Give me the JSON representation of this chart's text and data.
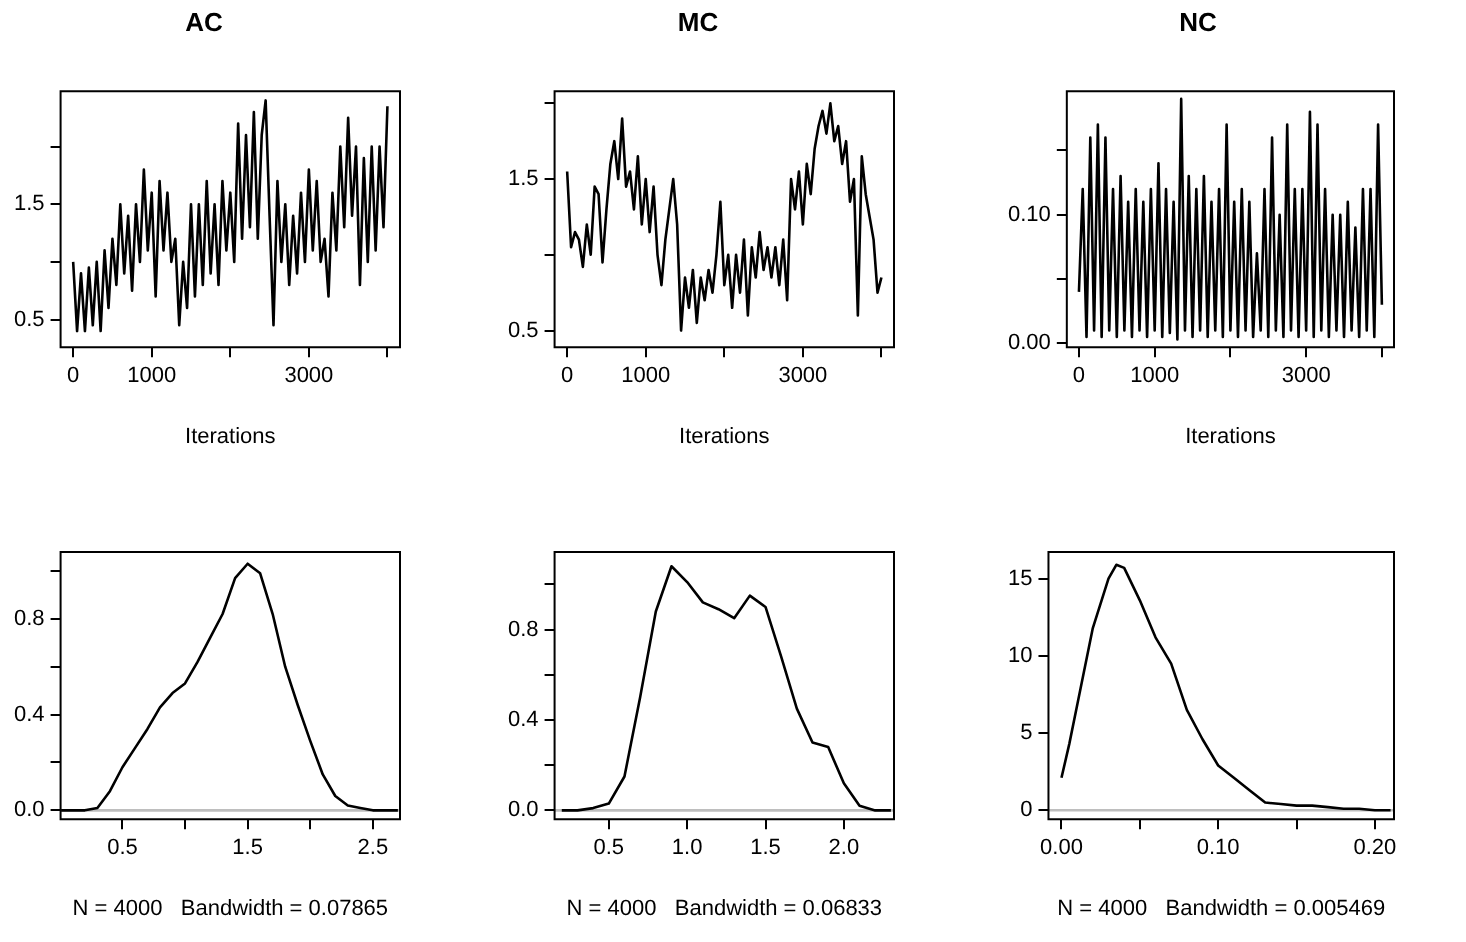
{
  "chart_data": [
    {
      "type": "line",
      "title": "AC",
      "xlabel": "Iterations",
      "x": [
        0,
        50,
        100,
        150,
        200,
        250,
        300,
        350,
        400,
        450,
        500,
        550,
        600,
        650,
        700,
        750,
        800,
        850,
        900,
        950,
        1000,
        1050,
        1100,
        1150,
        1200,
        1250,
        1300,
        1350,
        1400,
        1450,
        1500,
        1550,
        1600,
        1650,
        1700,
        1750,
        1800,
        1850,
        1900,
        1950,
        2000,
        2050,
        2100,
        2150,
        2200,
        2250,
        2300,
        2350,
        2400,
        2450,
        2500,
        2550,
        2600,
        2650,
        2700,
        2750,
        2800,
        2850,
        2900,
        2950,
        3000,
        3050,
        3100,
        3150,
        3200,
        3250,
        3300,
        3350,
        3400,
        3450,
        3500,
        3550,
        3600,
        3650,
        3700,
        3750,
        3800,
        3850,
        3900,
        3950,
        4000
      ],
      "series": [
        {
          "color": "#000000",
          "values": [
            1.0,
            0.4,
            0.9,
            0.4,
            0.95,
            0.45,
            1.0,
            0.4,
            1.1,
            0.6,
            1.2,
            0.8,
            1.5,
            0.9,
            1.4,
            0.75,
            1.5,
            1.0,
            1.8,
            1.1,
            1.6,
            0.7,
            1.7,
            1.1,
            1.6,
            1.0,
            1.2,
            0.45,
            1.0,
            0.6,
            1.5,
            0.7,
            1.5,
            0.8,
            1.7,
            0.9,
            1.5,
            0.8,
            1.7,
            1.1,
            1.6,
            1.0,
            2.2,
            1.2,
            2.1,
            1.3,
            2.3,
            1.2,
            2.1,
            2.4,
            1.4,
            0.45,
            1.7,
            1.0,
            1.5,
            0.8,
            1.4,
            0.9,
            1.6,
            1.0,
            1.8,
            1.1,
            1.7,
            1.0,
            1.2,
            0.7,
            1.6,
            1.1,
            2.0,
            1.3,
            2.25,
            1.4,
            2.0,
            0.8,
            1.9,
            1.0,
            2.0,
            1.1,
            2.0,
            1.3,
            2.35
          ]
        }
      ],
      "xlim": [
        -160,
        4160
      ],
      "xticks": [
        0,
        1000,
        {
          "value": 2000,
          "label": null
        },
        3000,
        {
          "value": 4000,
          "label": null
        }
      ],
      "ylim": [
        0.26,
        2.48
      ],
      "yticks": [
        0.5,
        {
          "value": 1.0,
          "label": null
        },
        1.5,
        {
          "value": 2.0,
          "label": null
        }
      ]
    },
    {
      "type": "line",
      "title": "MC",
      "xlabel": "Iterations",
      "x": [
        0,
        50,
        100,
        150,
        200,
        250,
        300,
        350,
        400,
        450,
        500,
        550,
        600,
        650,
        700,
        750,
        800,
        850,
        900,
        950,
        1000,
        1050,
        1100,
        1150,
        1200,
        1250,
        1300,
        1350,
        1400,
        1450,
        1500,
        1550,
        1600,
        1650,
        1700,
        1750,
        1800,
        1850,
        1900,
        1950,
        2000,
        2050,
        2100,
        2150,
        2200,
        2250,
        2300,
        2350,
        2400,
        2450,
        2500,
        2550,
        2600,
        2650,
        2700,
        2750,
        2800,
        2850,
        2900,
        2950,
        3000,
        3050,
        3100,
        3150,
        3200,
        3250,
        3300,
        3350,
        3400,
        3450,
        3500,
        3550,
        3600,
        3650,
        3700,
        3750,
        3800,
        3850,
        3900,
        3950,
        4000
      ],
      "series": [
        {
          "color": "#000000",
          "values": [
            1.55,
            1.05,
            1.15,
            1.1,
            0.92,
            1.2,
            1.0,
            1.45,
            1.4,
            0.95,
            1.3,
            1.6,
            1.75,
            1.5,
            1.9,
            1.45,
            1.55,
            1.3,
            1.65,
            1.2,
            1.5,
            1.15,
            1.45,
            1.0,
            0.8,
            1.1,
            1.3,
            1.5,
            1.2,
            0.5,
            0.85,
            0.65,
            0.9,
            0.55,
            0.85,
            0.7,
            0.9,
            0.75,
            1.0,
            1.35,
            0.8,
            1.0,
            0.65,
            1.0,
            0.75,
            1.1,
            0.6,
            1.05,
            0.85,
            1.15,
            0.9,
            1.05,
            0.85,
            1.05,
            0.8,
            1.1,
            0.7,
            1.5,
            1.3,
            1.55,
            1.2,
            1.6,
            1.4,
            1.7,
            1.85,
            1.95,
            1.8,
            2.0,
            1.75,
            1.85,
            1.6,
            1.75,
            1.35,
            1.5,
            0.6,
            1.65,
            1.4,
            1.25,
            1.1,
            0.75,
            0.85
          ]
        }
      ],
      "xlim": [
        -160,
        4160
      ],
      "xticks": [
        0,
        1000,
        {
          "value": 2000,
          "label": null
        },
        3000,
        {
          "value": 4000,
          "label": null
        }
      ],
      "ylim": [
        0.39,
        2.08
      ],
      "yticks": [
        0.5,
        {
          "value": 1.0,
          "label": null
        },
        1.5,
        {
          "value": 2.0,
          "label": null
        }
      ]
    },
    {
      "type": "line",
      "title": "NC",
      "xlabel": "Iterations",
      "x": [
        0,
        50,
        100,
        150,
        200,
        250,
        300,
        350,
        400,
        450,
        500,
        550,
        600,
        650,
        700,
        750,
        800,
        850,
        900,
        950,
        1000,
        1050,
        1100,
        1150,
        1200,
        1250,
        1300,
        1350,
        1400,
        1450,
        1500,
        1550,
        1600,
        1650,
        1700,
        1750,
        1800,
        1850,
        1900,
        1950,
        2000,
        2050,
        2100,
        2150,
        2200,
        2250,
        2300,
        2350,
        2400,
        2450,
        2500,
        2550,
        2600,
        2650,
        2700,
        2750,
        2800,
        2850,
        2900,
        2950,
        3000,
        3050,
        3100,
        3150,
        3200,
        3250,
        3300,
        3350,
        3400,
        3450,
        3500,
        3550,
        3600,
        3650,
        3700,
        3750,
        3800,
        3850,
        3900,
        3950,
        4000
      ],
      "series": [
        {
          "color": "#000000",
          "values": [
            0.04,
            0.12,
            0.005,
            0.16,
            0.01,
            0.17,
            0.005,
            0.16,
            0.01,
            0.12,
            0.005,
            0.13,
            0.01,
            0.11,
            0.005,
            0.12,
            0.01,
            0.11,
            0.005,
            0.12,
            0.01,
            0.14,
            0.005,
            0.12,
            0.008,
            0.11,
            0.003,
            0.19,
            0.01,
            0.13,
            0.005,
            0.12,
            0.01,
            0.13,
            0.005,
            0.11,
            0.01,
            0.12,
            0.005,
            0.17,
            0.01,
            0.11,
            0.005,
            0.12,
            0.01,
            0.11,
            0.005,
            0.07,
            0.01,
            0.12,
            0.005,
            0.16,
            0.01,
            0.1,
            0.005,
            0.17,
            0.01,
            0.12,
            0.005,
            0.12,
            0.01,
            0.18,
            0.005,
            0.17,
            0.01,
            0.12,
            0.005,
            0.1,
            0.01,
            0.1,
            0.005,
            0.11,
            0.01,
            0.09,
            0.005,
            0.12,
            0.01,
            0.12,
            0.005,
            0.17,
            0.03
          ]
        }
      ],
      "xlim": [
        -160,
        4160
      ],
      "xticks": [
        0,
        1000,
        {
          "value": 2000,
          "label": null
        },
        3000,
        {
          "value": 4000,
          "label": null
        }
      ],
      "ylim": [
        -0.003,
        0.196
      ],
      "yticks": [
        {
          "value": 0,
          "label": "0.00"
        },
        {
          "value": 0.05,
          "label": null
        },
        {
          "value": 0.1,
          "label": "0.10"
        },
        {
          "value": 0.15,
          "label": null
        }
      ]
    },
    {
      "type": "line",
      "xlabel": "N = 4000   Bandwidth = 0.07865",
      "x": [
        0.01,
        0.1,
        0.2,
        0.3,
        0.4,
        0.5,
        0.6,
        0.7,
        0.8,
        0.9,
        1.0,
        1.1,
        1.2,
        1.3,
        1.4,
        1.5,
        1.6,
        1.7,
        1.8,
        1.9,
        2.0,
        2.1,
        2.2,
        2.3,
        2.4,
        2.5,
        2.6,
        2.7
      ],
      "series": [
        {
          "color": "#000000",
          "values": [
            0,
            0,
            0,
            0.01,
            0.08,
            0.18,
            0.26,
            0.34,
            0.43,
            0.49,
            0.53,
            0.62,
            0.72,
            0.82,
            0.97,
            1.03,
            0.99,
            0.82,
            0.6,
            0.44,
            0.29,
            0.15,
            0.06,
            0.02,
            0.01,
            0,
            0,
            0
          ]
        }
      ],
      "xlim": [
        0.006,
        2.717
      ],
      "xticks": [
        0.5,
        {
          "value": 1.0,
          "label": null
        },
        1.5,
        {
          "value": 2.0,
          "label": null
        },
        2.5
      ],
      "ylim": [
        -0.037,
        1.079
      ],
      "yticks": [
        {
          "value": 0,
          "label": "0.0"
        },
        {
          "value": 0.2,
          "label": null
        },
        0.4,
        {
          "value": 0.6,
          "label": null
        },
        0.8,
        {
          "value": 1.0,
          "label": null
        }
      ],
      "ref_lines": [
        {
          "axis": "y",
          "value": 0,
          "color": "#bebebe"
        }
      ]
    },
    {
      "type": "line",
      "xlabel": "N = 4000   Bandwidth = 0.06833",
      "x": [
        0.2,
        0.3,
        0.4,
        0.5,
        0.6,
        0.7,
        0.8,
        0.9,
        1.0,
        1.1,
        1.2,
        1.3,
        1.4,
        1.5,
        1.6,
        1.7,
        1.8,
        1.9,
        2.0,
        2.1,
        2.2,
        2.3
      ],
      "series": [
        {
          "color": "#000000",
          "values": [
            0,
            0,
            0.01,
            0.03,
            0.15,
            0.5,
            0.88,
            1.08,
            1.01,
            0.92,
            0.89,
            0.85,
            0.95,
            0.9,
            0.68,
            0.45,
            0.3,
            0.28,
            0.12,
            0.02,
            0,
            0
          ]
        }
      ],
      "xlim": [
        0.154,
        2.32
      ],
      "xticks": [
        0.5,
        {
          "value": 1.0,
          "label": "1.0"
        },
        1.5,
        {
          "value": 2.0,
          "label": "2.0"
        }
      ],
      "ylim": [
        -0.039,
        1.143
      ],
      "yticks": [
        {
          "value": 0,
          "label": "0.0"
        },
        {
          "value": 0.2,
          "label": null
        },
        0.4,
        {
          "value": 0.6,
          "label": null
        },
        0.8,
        {
          "value": 1.0,
          "label": null
        }
      ],
      "ref_lines": [
        {
          "axis": "y",
          "value": 0,
          "color": "#bebebe"
        }
      ]
    },
    {
      "type": "line",
      "xlabel": "N = 4000   Bandwidth = 0.005469",
      "x": [
        0,
        0.005,
        0.01,
        0.02,
        0.03,
        0.035,
        0.04,
        0.05,
        0.06,
        0.07,
        0.08,
        0.09,
        0.1,
        0.11,
        0.12,
        0.13,
        0.14,
        0.15,
        0.16,
        0.17,
        0.18,
        0.19,
        0.2,
        0.21
      ],
      "series": [
        {
          "color": "#000000",
          "values": [
            2.1,
            4.3,
            6.8,
            11.8,
            15.0,
            15.9,
            15.7,
            13.6,
            11.2,
            9.5,
            6.5,
            4.6,
            2.9,
            2.1,
            1.3,
            0.5,
            0.4,
            0.3,
            0.3,
            0.2,
            0.1,
            0.1,
            0,
            0
          ]
        }
      ],
      "xlim": [
        -0.0083,
        0.2122
      ],
      "xticks": [
        {
          "value": 0,
          "label": "0.00"
        },
        {
          "value": 0.05,
          "label": null
        },
        {
          "value": 0.1,
          "label": "0.10"
        },
        {
          "value": 0.15,
          "label": null
        },
        {
          "value": 0.2,
          "label": "0.20"
        }
      ],
      "ylim": [
        -0.58,
        16.73
      ],
      "yticks": [
        0,
        5,
        10,
        15
      ],
      "ref_lines": [
        {
          "axis": "y",
          "value": 0,
          "color": "#bebebe"
        }
      ]
    }
  ]
}
